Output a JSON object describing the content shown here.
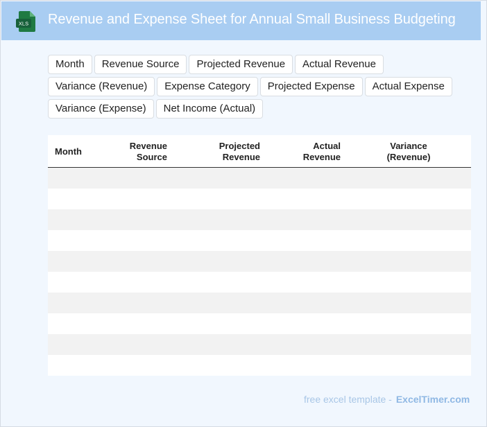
{
  "header": {
    "icon_text": "XLS",
    "title": "Revenue and Expense Sheet for Annual Small Business Budgeting"
  },
  "chips": [
    "Month",
    "Revenue Source",
    "Projected Revenue",
    "Actual Revenue",
    "Variance (Revenue)",
    "Expense Category",
    "Projected Expense",
    "Actual Expense",
    "Variance (Expense)",
    "Net Income (Actual)"
  ],
  "table": {
    "headers": {
      "month": "Month",
      "revenue_source_1": "Revenue",
      "revenue_source_2": "Source",
      "projected_revenue_1": "Projected",
      "projected_revenue_2": "Revenue",
      "actual_revenue_1": "Actual",
      "actual_revenue_2": "Revenue",
      "variance_revenue_1": "Variance",
      "variance_revenue_2": "(Revenue)"
    }
  },
  "footer": {
    "label": "free excel template -",
    "brand": "ExcelTimer.com"
  },
  "colors": {
    "header_bg": "#a9cdf2",
    "page_bg": "#f1f7fe",
    "icon_green": "#1f7a43"
  }
}
